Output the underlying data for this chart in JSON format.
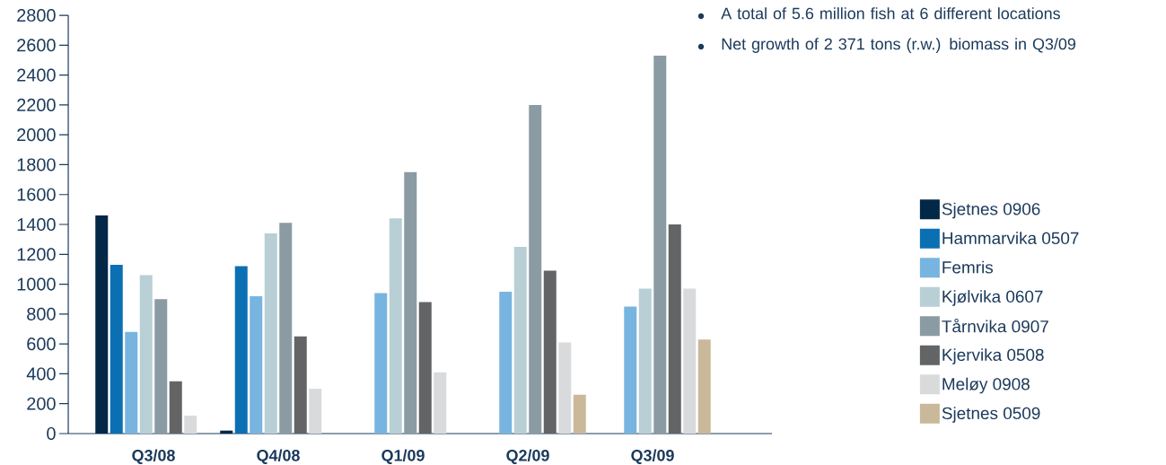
{
  "chart_data": {
    "type": "bar",
    "categories": [
      "Q3/08",
      "Q4/08",
      "Q1/09",
      "Q2/09",
      "Q3/09"
    ],
    "series": [
      {
        "name": "Sjetnes 0906",
        "color": "#022747",
        "values": [
          1460,
          20,
          null,
          null,
          null
        ]
      },
      {
        "name": "Hammarvika 0507",
        "color": "#0b70b3",
        "values": [
          1130,
          1120,
          null,
          null,
          null
        ]
      },
      {
        "name": "Femris",
        "color": "#77b5e0",
        "values": [
          680,
          920,
          940,
          950,
          850
        ]
      },
      {
        "name": "Kjølvika 0607",
        "color": "#b8cfd5",
        "values": [
          1060,
          1340,
          1440,
          1250,
          970
        ]
      },
      {
        "name": "Tårnvika 0907",
        "color": "#8a9ba3",
        "values": [
          900,
          1410,
          1750,
          2200,
          2530
        ]
      },
      {
        "name": "Kjervika 0508",
        "color": "#636466",
        "values": [
          350,
          650,
          880,
          1090,
          1400
        ]
      },
      {
        "name": "Meløy 0908",
        "color": "#d9dadc",
        "values": [
          120,
          300,
          410,
          610,
          970
        ]
      },
      {
        "name": "Sjetnes 0509",
        "color": "#c9b99a",
        "values": [
          null,
          null,
          null,
          260,
          630
        ]
      }
    ],
    "ylim": [
      0,
      2800
    ],
    "yticks": [
      0,
      200,
      400,
      600,
      800,
      1000,
      1200,
      1400,
      1600,
      1800,
      2000,
      2200,
      2400,
      2600,
      2800
    ],
    "legend": "right",
    "annotations": [
      "A total of 5.6 million fish at 6 different locations",
      "Net growth of 2 371 tons (r.w.) biomass in Q3/09"
    ]
  }
}
